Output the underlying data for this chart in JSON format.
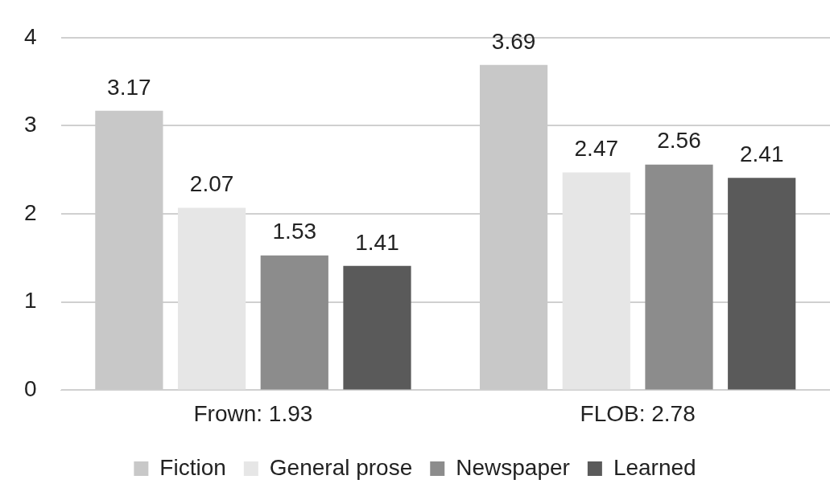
{
  "chart_data": {
    "type": "bar",
    "categories": [
      "Frown: 1.93",
      "FLOB: 2.78"
    ],
    "series": [
      {
        "name": "Fiction",
        "color": "#c8c8c8",
        "values": [
          3.17,
          3.69
        ]
      },
      {
        "name": "General prose",
        "color": "#e6e6e6",
        "values": [
          2.07,
          2.47
        ]
      },
      {
        "name": "Newspaper",
        "color": "#8c8c8c",
        "values": [
          1.53,
          2.56
        ]
      },
      {
        "name": "Learned",
        "color": "#5a5a5a",
        "values": [
          1.41,
          2.41
        ]
      }
    ],
    "ylim": [
      0,
      4
    ],
    "yticks": [
      0,
      1,
      2,
      3,
      4
    ],
    "grid": "y",
    "legend": "bottom",
    "data_labels": true
  }
}
